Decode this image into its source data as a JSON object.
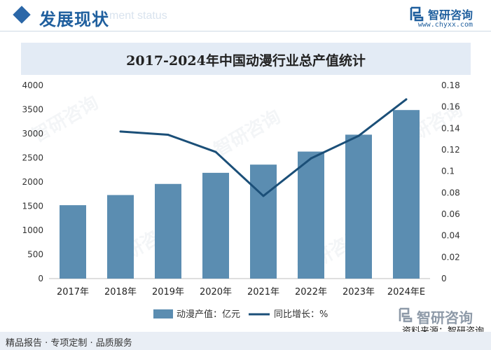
{
  "header": {
    "title": "发展现状",
    "subtitle": "ment status",
    "brand_name": "智研咨询",
    "brand_url": "www.chyxx.com"
  },
  "chart_data": {
    "type": "bar",
    "title": "2017-2024年中国动漫行业总产值统计",
    "categories": [
      "2017年",
      "2018年",
      "2019年",
      "2020年",
      "2021年",
      "2022年",
      "2023年",
      "2024年E"
    ],
    "series": [
      {
        "name": "动漫产值：亿元",
        "type": "bar",
        "axis": "left",
        "color": "#5b8db1",
        "values": [
          1520,
          1730,
          1960,
          2190,
          2360,
          2630,
          2980,
          3490
        ]
      },
      {
        "name": "同比增长：%",
        "type": "line",
        "axis": "right",
        "color": "#1b4f78",
        "values": [
          null,
          0.137,
          0.134,
          0.118,
          0.077,
          0.112,
          0.133,
          0.167
        ]
      }
    ],
    "y_left": {
      "min": 0,
      "max": 4000,
      "step": 500,
      "ticks": [
        "0",
        "500",
        "1000",
        "1500",
        "2000",
        "2500",
        "3000",
        "3500",
        "4000"
      ]
    },
    "y_right": {
      "min": 0,
      "max": 0.18,
      "step": 0.02,
      "ticks": [
        "0",
        "0.02",
        "0.04",
        "0.06",
        "0.08",
        "0.1",
        "0.12",
        "0.14",
        "0.16",
        "0.18"
      ]
    },
    "grid": false,
    "legend_position": "bottom"
  },
  "watermark": "智研咨询",
  "footer": {
    "left": "精品报告 · 专项定制 · 品质服务",
    "brand": "智研咨询",
    "source": "资料来源：智研咨询"
  }
}
